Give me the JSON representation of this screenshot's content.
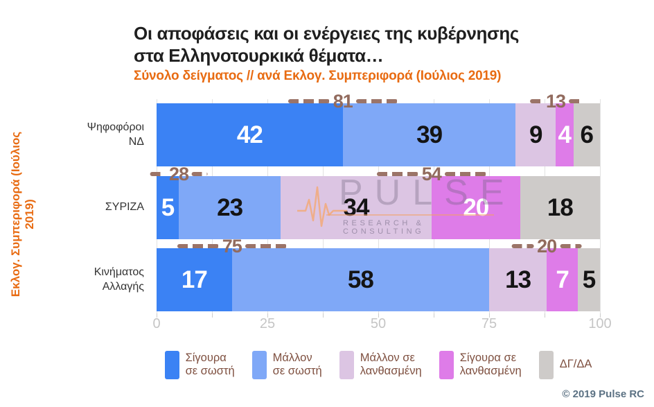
{
  "title": "Οι αποφάσεις και οι ενέργειες της κυβέρνησης\nστα Ελληνοτουρκικά θέματα…",
  "subtitle": "Σύνολο δείγματος // ανά Εκλογ. Συμπεριφορά (Ιούλιος 2019)",
  "y_axis_label": "Εκλογ. Συμπεριφορά (Ιούλιος 2019)",
  "footer": "© 2019 Pulse RC",
  "watermark": {
    "name": "PULSE",
    "tagline": "RESEARCH & CONSULTING",
    "icon": "pulse-waveform-icon"
  },
  "colors": {
    "accent_orange": "#e86b12",
    "annotation_brown": "#926b5e",
    "legend_text_brown": "#7e4f3f",
    "axis_label_gray": "#c5c5c5",
    "footer_blue_gray": "#5b7183"
  },
  "chart_data": {
    "type": "bar",
    "orientation": "horizontal",
    "stacked": true,
    "grid": "vertical, every 12.5 units",
    "legend_position": "bottom",
    "xlim": [
      0,
      100
    ],
    "x_ticks": [
      0,
      25,
      50,
      75,
      100
    ],
    "categories": [
      "Ψηφοφόροι\nΝΔ",
      "ΣΥΡΙΖΑ",
      "Κινήματος\nΑλλαγής"
    ],
    "series": [
      {
        "name": "Σίγουρα σε σωστή",
        "color": "#3b82f4",
        "label_color": "#ffffff",
        "values": [
          42,
          5,
          17
        ]
      },
      {
        "name": "Μάλλον σε σωστή",
        "color": "#7fa8f7",
        "label_color": "#141414",
        "values": [
          39,
          23,
          58
        ]
      },
      {
        "name": "Μάλλον σε λανθασμένη",
        "color": "#dcc5e3",
        "label_color": "#141414",
        "values": [
          9,
          34,
          13
        ]
      },
      {
        "name": "Σίγουρα σε λανθασμένη",
        "color": "#de7ce8",
        "label_color": "#ffffff",
        "values": [
          4,
          20,
          7
        ]
      },
      {
        "name": "ΔΓ/ΔΑ",
        "color": "#cecbc9",
        "label_color": "#141414",
        "values": [
          6,
          18,
          5
        ]
      }
    ],
    "sum_annotations": [
      {
        "row": 0,
        "segments": [
          0,
          1
        ],
        "value": 81
      },
      {
        "row": 0,
        "segments": [
          2,
          3
        ],
        "value": 13
      },
      {
        "row": 1,
        "segments": [
          0,
          1
        ],
        "value": 28
      },
      {
        "row": 1,
        "segments": [
          2,
          3
        ],
        "value": 54
      },
      {
        "row": 2,
        "segments": [
          0,
          1
        ],
        "value": 75
      },
      {
        "row": 2,
        "segments": [
          2,
          3
        ],
        "value": 20
      }
    ]
  },
  "legend": {
    "entries": [
      {
        "lines": "Σίγουρα\nσε σωστή",
        "color": "#3b82f4"
      },
      {
        "lines": "Μάλλον\nσε σωστή",
        "color": "#7fa8f7"
      },
      {
        "lines": "Μάλλον σε\nλανθασμένη",
        "color": "#dcc5e3"
      },
      {
        "lines": "Σίγουρα σε\nλανθασμένη",
        "color": "#de7ce8"
      },
      {
        "lines": "ΔΓ/ΔΑ",
        "color": "#cecbc9"
      }
    ]
  }
}
